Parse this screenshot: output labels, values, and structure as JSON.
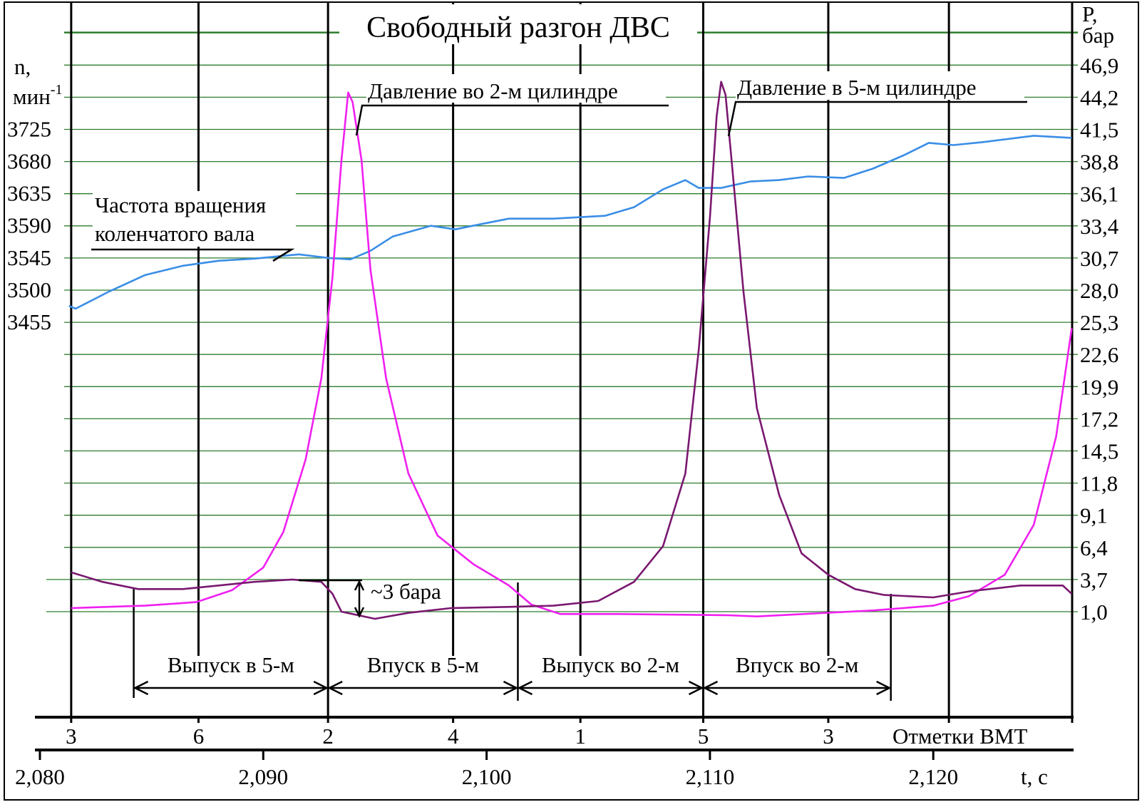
{
  "colors": {
    "rpm": "#3a8ee6",
    "p_cyl2": "#f020f0",
    "p_cyl5": "#7a1870",
    "grid": "#2e7d2e"
  },
  "chart_data": {
    "type": "line",
    "title": "Свободный разгон ДВС",
    "y_left": {
      "label_line1": "n,",
      "label_line2": "мин",
      "label_sup": "-1",
      "range": [
        3455,
        3725
      ],
      "ticks": [
        3725,
        3680,
        3635,
        3590,
        3545,
        3500,
        3455
      ]
    },
    "y_right": {
      "label_line1": "P,",
      "label_line2": "бар",
      "range": [
        1.0,
        49.6
      ],
      "ticks": [
        "46,9",
        "44,2",
        "41,5",
        "38,8",
        "36,1",
        "33,4",
        "30,7",
        "28,0",
        "25,3",
        "22,6",
        "19,9",
        "17,2",
        "14,5",
        "11,8",
        "9,1",
        "6,4",
        "3,7",
        "1,0"
      ]
    },
    "x_axis": {
      "label": "t, c",
      "range": [
        2.0814,
        2.1262
      ],
      "ticks": [
        {
          "t": 2.08,
          "label": "2,080"
        },
        {
          "t": 2.09,
          "label": "2,090"
        },
        {
          "t": 2.1,
          "label": "2,100"
        },
        {
          "t": 2.11,
          "label": "2,110"
        },
        {
          "t": 2.12,
          "label": "2,120"
        }
      ]
    },
    "bmt_axis": {
      "label": "Отметки ВМТ",
      "marks": [
        {
          "t": 2.0814,
          "label": "3"
        },
        {
          "t": 2.0871,
          "label": "6"
        },
        {
          "t": 2.0929,
          "label": "2"
        },
        {
          "t": 2.0985,
          "label": "4"
        },
        {
          "t": 2.1042,
          "label": "1"
        },
        {
          "t": 2.1097,
          "label": "5"
        },
        {
          "t": 2.1153,
          "label": "3"
        },
        {
          "t": 2.1207,
          "label": ""
        }
      ]
    },
    "series": [
      {
        "name": "Частота вращения коленчатого вала",
        "axis": "left",
        "unit": "мин-1",
        "t": [
          2.0813,
          2.0816,
          2.0831,
          2.0847,
          2.0864,
          2.088,
          2.0896,
          2.0916,
          2.0929,
          2.0939,
          2.0948,
          2.0958,
          2.0975,
          2.0986,
          2.0997,
          2.101,
          2.103,
          2.1053,
          2.1066,
          2.1079,
          2.1089,
          2.1095,
          2.1105,
          2.1118,
          2.1131,
          2.1144,
          2.116,
          2.1173,
          2.1187,
          2.1198,
          2.1209,
          2.1222,
          2.1245,
          2.1262
        ],
        "values": [
          3477,
          3473,
          3497,
          3520,
          3533,
          3540,
          3543,
          3549,
          3544,
          3542,
          3554,
          3574,
          3589,
          3584,
          3591,
          3599,
          3599,
          3603,
          3615,
          3640,
          3653,
          3642,
          3642,
          3651,
          3653,
          3658,
          3656,
          3669,
          3688,
          3705,
          3702,
          3706,
          3715,
          3712
        ]
      },
      {
        "name": "Давление во 2-м цилиндре",
        "axis": "right",
        "unit": "бар",
        "t": [
          2.0814,
          2.0847,
          2.087,
          2.0886,
          2.09,
          2.0909,
          2.0919,
          2.0926,
          2.0931,
          2.0935,
          2.0938,
          2.094,
          2.0944,
          2.0948,
          2.0955,
          2.0965,
          2.0978,
          2.0994,
          2.101,
          2.102,
          2.1033,
          2.1059,
          2.1108,
          2.1121,
          2.1173,
          2.12,
          2.1216,
          2.1232,
          2.1245,
          2.1255,
          2.1262
        ],
        "values": [
          1.3,
          1.5,
          1.8,
          2.8,
          4.7,
          7.7,
          13.8,
          20.6,
          29.1,
          38.9,
          44.6,
          43.8,
          38.9,
          29.7,
          20.6,
          12.6,
          7.4,
          5.0,
          3.2,
          1.6,
          0.8,
          0.8,
          0.7,
          0.6,
          1.1,
          1.5,
          2.3,
          4.1,
          8.3,
          15.7,
          24.8
        ]
      },
      {
        "name": "Давление в 5-м цилиндре",
        "axis": "right",
        "unit": "бар",
        "t": [
          2.0814,
          2.0828,
          2.0844,
          2.0864,
          2.088,
          2.0896,
          2.0913,
          2.0926,
          2.0931,
          2.0935,
          2.095,
          2.0965,
          2.0984,
          2.101,
          2.103,
          2.105,
          2.1066,
          2.1079,
          2.1089,
          2.1095,
          2.11,
          2.1103,
          2.1105,
          2.1107,
          2.111,
          2.1115,
          2.1121,
          2.1131,
          2.1141,
          2.1153,
          2.1165,
          2.1178,
          2.12,
          2.1216,
          2.1239,
          2.1258,
          2.1262
        ],
        "values": [
          4.3,
          3.5,
          2.9,
          2.9,
          3.2,
          3.5,
          3.7,
          3.5,
          2.5,
          1.0,
          0.4,
          0.9,
          1.3,
          1.4,
          1.5,
          1.9,
          3.5,
          6.5,
          12.6,
          23.0,
          34.1,
          42.6,
          45.5,
          44.4,
          38.3,
          27.9,
          18.1,
          10.8,
          5.9,
          4.1,
          2.9,
          2.4,
          2.2,
          2.7,
          3.2,
          3.2,
          2.5
        ]
      }
    ],
    "annotations": {
      "p2_label": "Давление во 2-м цилиндре",
      "p5_label": "Давление в 5-м цилиндре",
      "rpm_label_line1": "Частота вращения",
      "rpm_label_line2": "коленчатого вала",
      "delta_label": "~3 бара",
      "delta_value_bar": 3
    },
    "phases": [
      {
        "label": "Выпуск в 5-м",
        "t_start": 2.0842,
        "t_end": 2.0929
      },
      {
        "label": "Впуск в 5-м",
        "t_start": 2.0929,
        "t_end": 2.1014
      },
      {
        "label": "Выпуск во 2-м",
        "t_start": 2.1014,
        "t_end": 2.1097
      },
      {
        "label": "Впуск во 2-м",
        "t_start": 2.1097,
        "t_end": 2.1181
      }
    ]
  }
}
